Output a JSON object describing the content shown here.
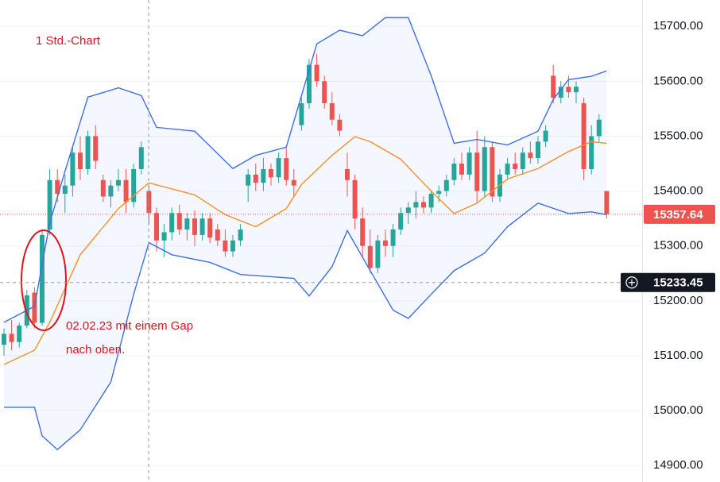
{
  "chart_data": {
    "type": "candlestick",
    "annotations": [
      "1 Std.-Chart",
      "02.02.23 mit einem Gap",
      "nach oben."
    ],
    "ylim": [
      14870,
      15748
    ],
    "yticks": [
      {
        "value": 14900,
        "label": "14900.00"
      },
      {
        "value": 15000,
        "label": "15000.00"
      },
      {
        "value": 15100,
        "label": "15100.00"
      },
      {
        "value": 15200,
        "label": "15200.00"
      },
      {
        "value": 15300,
        "label": "15300.00"
      },
      {
        "value": 15400,
        "label": "15400.00"
      },
      {
        "value": 15500,
        "label": "15500.00"
      },
      {
        "value": 15600,
        "label": "15600.00"
      },
      {
        "value": 15700,
        "label": "15700.00"
      }
    ],
    "grid": true,
    "up_color": "#26a69a",
    "down_color": "#ef5350",
    "last_price": {
      "value": 15357.64,
      "label": "15357.64",
      "color": "#ef5350"
    },
    "crosshair": {
      "value": 15233.45,
      "label": "15233.45"
    },
    "open": [
      15120,
      15140,
      15125,
      15155,
      15215,
      15160,
      15330,
      15420,
      15395,
      15410,
      15470,
      15440,
      15500,
      15420,
      15390,
      15410,
      15420,
      15380,
      15440,
      15400,
      15360,
      15310,
      15325,
      15360,
      15330,
      15350,
      15320,
      15350,
      15330,
      15310,
      15290,
      15310,
      15410,
      15430,
      15415,
      15440,
      15425,
      15460,
      15420,
      15520,
      15560,
      15630,
      15600,
      15560,
      15530,
      15440,
      15420,
      15350,
      15300,
      15260,
      15310,
      15300,
      15330,
      15360,
      15370,
      15380,
      15370,
      15395,
      15400,
      15420,
      15450,
      15430,
      15470,
      15400,
      15480,
      15390,
      15430,
      15450,
      15440,
      15470,
      15460,
      15490,
      15610,
      15570,
      15590,
      15580,
      15560,
      15440,
      15500,
      15400
    ],
    "high": [
      15150,
      15165,
      15160,
      15220,
      15225,
      15330,
      15440,
      15440,
      15430,
      15480,
      15500,
      15510,
      15520,
      15430,
      15420,
      15440,
      15440,
      15450,
      15490,
      15410,
      15370,
      15340,
      15370,
      15375,
      15360,
      15365,
      15360,
      15360,
      15340,
      15330,
      15320,
      15340,
      15440,
      15450,
      15460,
      15450,
      15470,
      15480,
      15440,
      15570,
      15640,
      15650,
      15610,
      15580,
      15540,
      15470,
      15430,
      15370,
      15330,
      15320,
      15330,
      15340,
      15370,
      15380,
      15400,
      15390,
      15400,
      15410,
      15430,
      15460,
      15470,
      15480,
      15510,
      15500,
      15490,
      15440,
      15460,
      15470,
      15480,
      15490,
      15500,
      15520,
      15630,
      15600,
      15610,
      15600,
      15570,
      15520,
      15540,
      15400
    ],
    "low": [
      15100,
      15110,
      15115,
      15150,
      15150,
      15155,
      15320,
      15380,
      15360,
      15390,
      15420,
      15430,
      15440,
      15380,
      15370,
      15400,
      15360,
      15370,
      15430,
      15340,
      15290,
      15280,
      15310,
      15320,
      15310,
      15300,
      15310,
      15305,
      15300,
      15280,
      15280,
      15300,
      15380,
      15400,
      15400,
      15410,
      15415,
      15410,
      15390,
      15510,
      15550,
      15590,
      15550,
      15520,
      15500,
      15390,
      15330,
      15280,
      15250,
      15250,
      15280,
      15280,
      15320,
      15340,
      15350,
      15360,
      15360,
      15380,
      15390,
      15410,
      15420,
      15420,
      15380,
      15390,
      15380,
      15380,
      15420,
      15430,
      15430,
      15450,
      15450,
      15480,
      15560,
      15560,
      15570,
      15560,
      15420,
      15430,
      15490,
      15350
    ],
    "close": [
      15140,
      15125,
      15155,
      15210,
      15160,
      15320,
      15420,
      15395,
      15410,
      15470,
      15440,
      15500,
      15455,
      15390,
      15410,
      15420,
      15380,
      15440,
      15480,
      15360,
      15310,
      15325,
      15360,
      15330,
      15350,
      15320,
      15350,
      15315,
      15310,
      15290,
      15310,
      15330,
      15430,
      15415,
      15440,
      15425,
      15460,
      15420,
      15410,
      15560,
      15630,
      15600,
      15560,
      15530,
      15510,
      15420,
      15350,
      15300,
      15260,
      15310,
      15300,
      15330,
      15360,
      15370,
      15380,
      15370,
      15395,
      15400,
      15420,
      15450,
      15430,
      15470,
      15400,
      15480,
      15390,
      15430,
      15450,
      15440,
      15470,
      15460,
      15490,
      15510,
      15570,
      15590,
      15580,
      15590,
      15440,
      15500,
      15530,
      15358
    ],
    "bands": [
      {
        "color": "#3e6fe6",
        "x": [
          0,
          4,
          6,
          8,
          11,
          15,
          18,
          20,
          25,
          30,
          33,
          37,
          39,
          41,
          44,
          47,
          50,
          53,
          56,
          59,
          62,
          66,
          70,
          72,
          74,
          77,
          79
        ],
        "values": [
          15161,
          15190,
          15342,
          15436,
          15571,
          15588,
          15574,
          15516,
          15509,
          15441,
          15465,
          15480,
          15574,
          15668,
          15693,
          15683,
          15716,
          15716,
          15610,
          15487,
          15494,
          15484,
          15509,
          15567,
          15603,
          15609,
          15619
        ]
      },
      {
        "color": "#f5902a",
        "x": [
          0,
          4,
          6,
          10,
          15,
          19,
          25,
          29,
          33,
          37,
          39,
          43,
          46,
          48,
          52,
          56,
          59,
          62,
          66,
          70,
          74,
          77,
          79
        ],
        "values": [
          15084,
          15110,
          15161,
          15284,
          15368,
          15415,
          15393,
          15357,
          15335,
          15368,
          15412,
          15465,
          15499,
          15490,
          15458,
          15400,
          15359,
          15378,
          15422,
          15441,
          15472,
          15490,
          15487
        ]
      },
      {
        "color": "#3e6fe6",
        "x": [
          0,
          4,
          5,
          7,
          10,
          14,
          17,
          19,
          22,
          27,
          31,
          38,
          40,
          43,
          45,
          48,
          51,
          53,
          56,
          59,
          63,
          66,
          70,
          74,
          77,
          79
        ],
        "values": [
          15006,
          15006,
          14954,
          14929,
          14965,
          15052,
          15212,
          15306,
          15284,
          15270,
          15248,
          15241,
          15209,
          15262,
          15328,
          15255,
          15183,
          15168,
          15212,
          15255,
          15287,
          15335,
          15378,
          15359,
          15362,
          15357
        ]
      }
    ]
  }
}
